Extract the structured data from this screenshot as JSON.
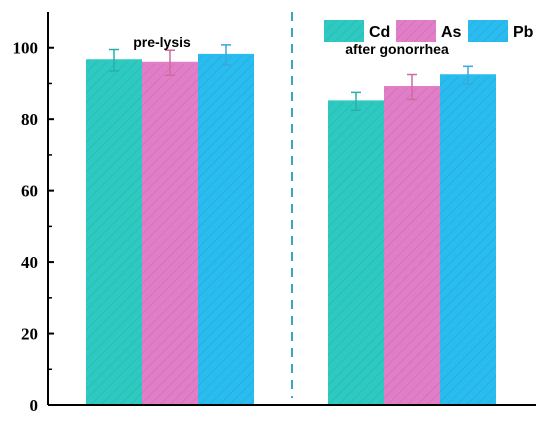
{
  "chart_data": {
    "type": "bar",
    "categories": [
      "pre-lysis",
      "after gonorrhea"
    ],
    "series": [
      {
        "name": "Cd",
        "values": [
          96.5,
          85.0
        ],
        "errors": [
          3.0,
          2.5
        ],
        "color": "#2ec9c0",
        "error_color": "#28b0a8"
      },
      {
        "name": "As",
        "values": [
          95.8,
          89.0
        ],
        "errors": [
          3.5,
          3.5
        ],
        "color": "#e07fc8",
        "error_color": "#d06aa0"
      },
      {
        "name": "Pb",
        "values": [
          98.0,
          92.3
        ],
        "errors": [
          2.8,
          2.5
        ],
        "color": "#2abcee",
        "error_color": "#3aa8d8"
      }
    ],
    "ylim": [
      0,
      110
    ],
    "yticks": [
      0,
      20,
      40,
      60,
      80,
      100
    ],
    "ytick_labels": [
      "0",
      "20",
      "40",
      "60",
      "80",
      "100"
    ],
    "xlabel": "",
    "ylabel": "",
    "legend_position": "top-right",
    "hatched_bars": true,
    "divider_line": {
      "style": "dashed",
      "color": "#3aa6c4"
    }
  }
}
